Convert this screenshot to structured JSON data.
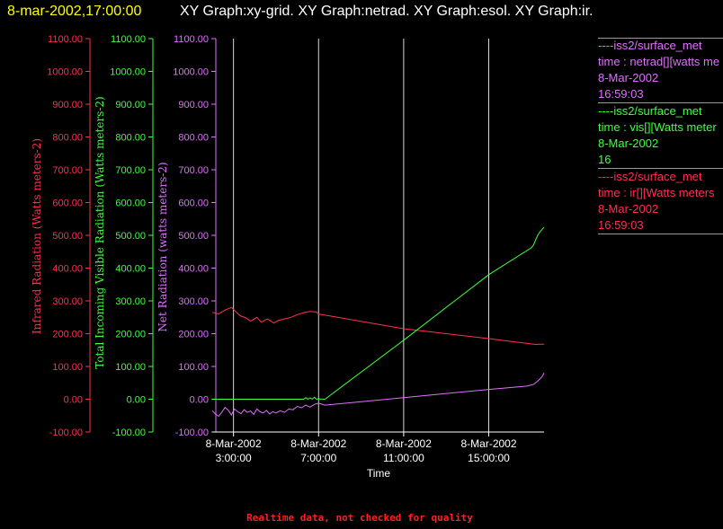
{
  "header": {
    "timestamp": "8-mar-2002,17:00:00",
    "graphs": "XY Graph:xy-grid.  XY Graph:netrad.  XY Graph:esol.  XY Graph:ir.",
    "timestamp_color": "#ffff00",
    "graphs_color": "#ffffff"
  },
  "colors": {
    "ir": "#ff3050",
    "vis": "#40ff40",
    "net": "#e070ff",
    "grid": "#ffffff",
    "axis_text": "#ffffff"
  },
  "legend": [
    {
      "source": "----iss2/surface_met",
      "var": "time : netrad[][watts me",
      "date": "8-Mar-2002",
      "time": "16:59:03",
      "color": "#e070ff"
    },
    {
      "source": "----iss2/surface_met",
      "var": "time : vis[][Watts meter",
      "date": "8-Mar-2002",
      "time": "16",
      "color": "#40ff40"
    },
    {
      "source": "----iss2/surface_met",
      "var": "time : ir[][Watts meters",
      "date": "8-Mar-2002",
      "time": "16:59:03",
      "color": "#ff3050"
    }
  ],
  "note": "Realtime data, not checked for quality",
  "chart_data": {
    "type": "line",
    "xlabel": "Time",
    "x_unit": "hours",
    "xlim": [
      2.0,
      17.6
    ],
    "x_ticks": [
      {
        "value": 3,
        "date": "8-Mar-2002",
        "time": "3:00:00"
      },
      {
        "value": 7,
        "date": "8-Mar-2002",
        "time": "7:00:00"
      },
      {
        "value": 11,
        "date": "8-Mar-2002",
        "time": "11:00:00"
      },
      {
        "value": 15,
        "date": "8-Mar-2002",
        "time": "15:00:00"
      }
    ],
    "ylim": [
      -100,
      1100
    ],
    "y_ticks": [
      "-100.00",
      "0.00",
      "100.00",
      "200.00",
      "300.00",
      "400.00",
      "500.00",
      "600.00",
      "700.00",
      "800.00",
      "900.00",
      "1000.00",
      "1100.00"
    ],
    "y_tick_values": [
      -100,
      0,
      100,
      200,
      300,
      400,
      500,
      600,
      700,
      800,
      900,
      1000,
      1100
    ],
    "axes": [
      {
        "label": "Infrared Radiation (Watts meters-2)",
        "color": "#ff3050"
      },
      {
        "label": "Total Incoming Visible Radiation (Watts meters-2)",
        "color": "#40ff40"
      },
      {
        "label": "Net Radiation (watts meters-2)",
        "color": "#e070ff"
      }
    ],
    "grid": "vertical",
    "series": [
      {
        "name": "ir",
        "color": "#ff3050",
        "x": [
          2.0,
          2.3,
          2.6,
          2.9,
          3.1,
          3.3,
          3.6,
          3.8,
          4.1,
          4.3,
          4.6,
          4.9,
          5.1,
          5.4,
          5.7,
          6.0,
          6.3,
          6.6,
          6.9,
          7.0,
          11.0,
          15.0,
          16.8,
          17.2,
          17.4,
          17.6
        ],
        "y": [
          265,
          260,
          272,
          280,
          268,
          255,
          248,
          238,
          250,
          235,
          245,
          232,
          240,
          245,
          250,
          258,
          264,
          268,
          266,
          260,
          215,
          185,
          170,
          167,
          168,
          168
        ]
      },
      {
        "name": "vis",
        "color": "#40ff40",
        "x": [
          2.0,
          5.0,
          6.3,
          6.4,
          6.5,
          6.6,
          6.7,
          6.8,
          6.9,
          7.0,
          7.3,
          11.0,
          15.0,
          17.0,
          17.1,
          17.2,
          17.3,
          17.4,
          17.6
        ],
        "y": [
          0,
          0,
          0,
          5,
          0,
          4,
          0,
          6,
          0,
          1,
          0,
          180,
          380,
          462,
          470,
          485,
          500,
          510,
          525
        ]
      },
      {
        "name": "net",
        "color": "#e070ff",
        "x": [
          2.0,
          2.15,
          2.3,
          2.45,
          2.6,
          2.75,
          2.9,
          3.05,
          3.2,
          3.35,
          3.5,
          3.65,
          3.8,
          3.95,
          4.1,
          4.25,
          4.4,
          4.55,
          4.7,
          4.85,
          5.0,
          5.2,
          5.4,
          5.6,
          5.8,
          6.0,
          6.2,
          6.4,
          6.6,
          6.8,
          7.0,
          7.3,
          11.0,
          15.0,
          16.8,
          17.1,
          17.3,
          17.5,
          17.6
        ],
        "y": [
          -35,
          -45,
          -52,
          -40,
          -25,
          -33,
          -48,
          -30,
          -38,
          -44,
          -32,
          -40,
          -36,
          -46,
          -30,
          -38,
          -42,
          -34,
          -45,
          -38,
          -42,
          -35,
          -40,
          -30,
          -32,
          -22,
          -26,
          -18,
          -24,
          -16,
          -12,
          -18,
          5,
          30,
          40,
          45,
          55,
          68,
          80
        ]
      }
    ]
  }
}
